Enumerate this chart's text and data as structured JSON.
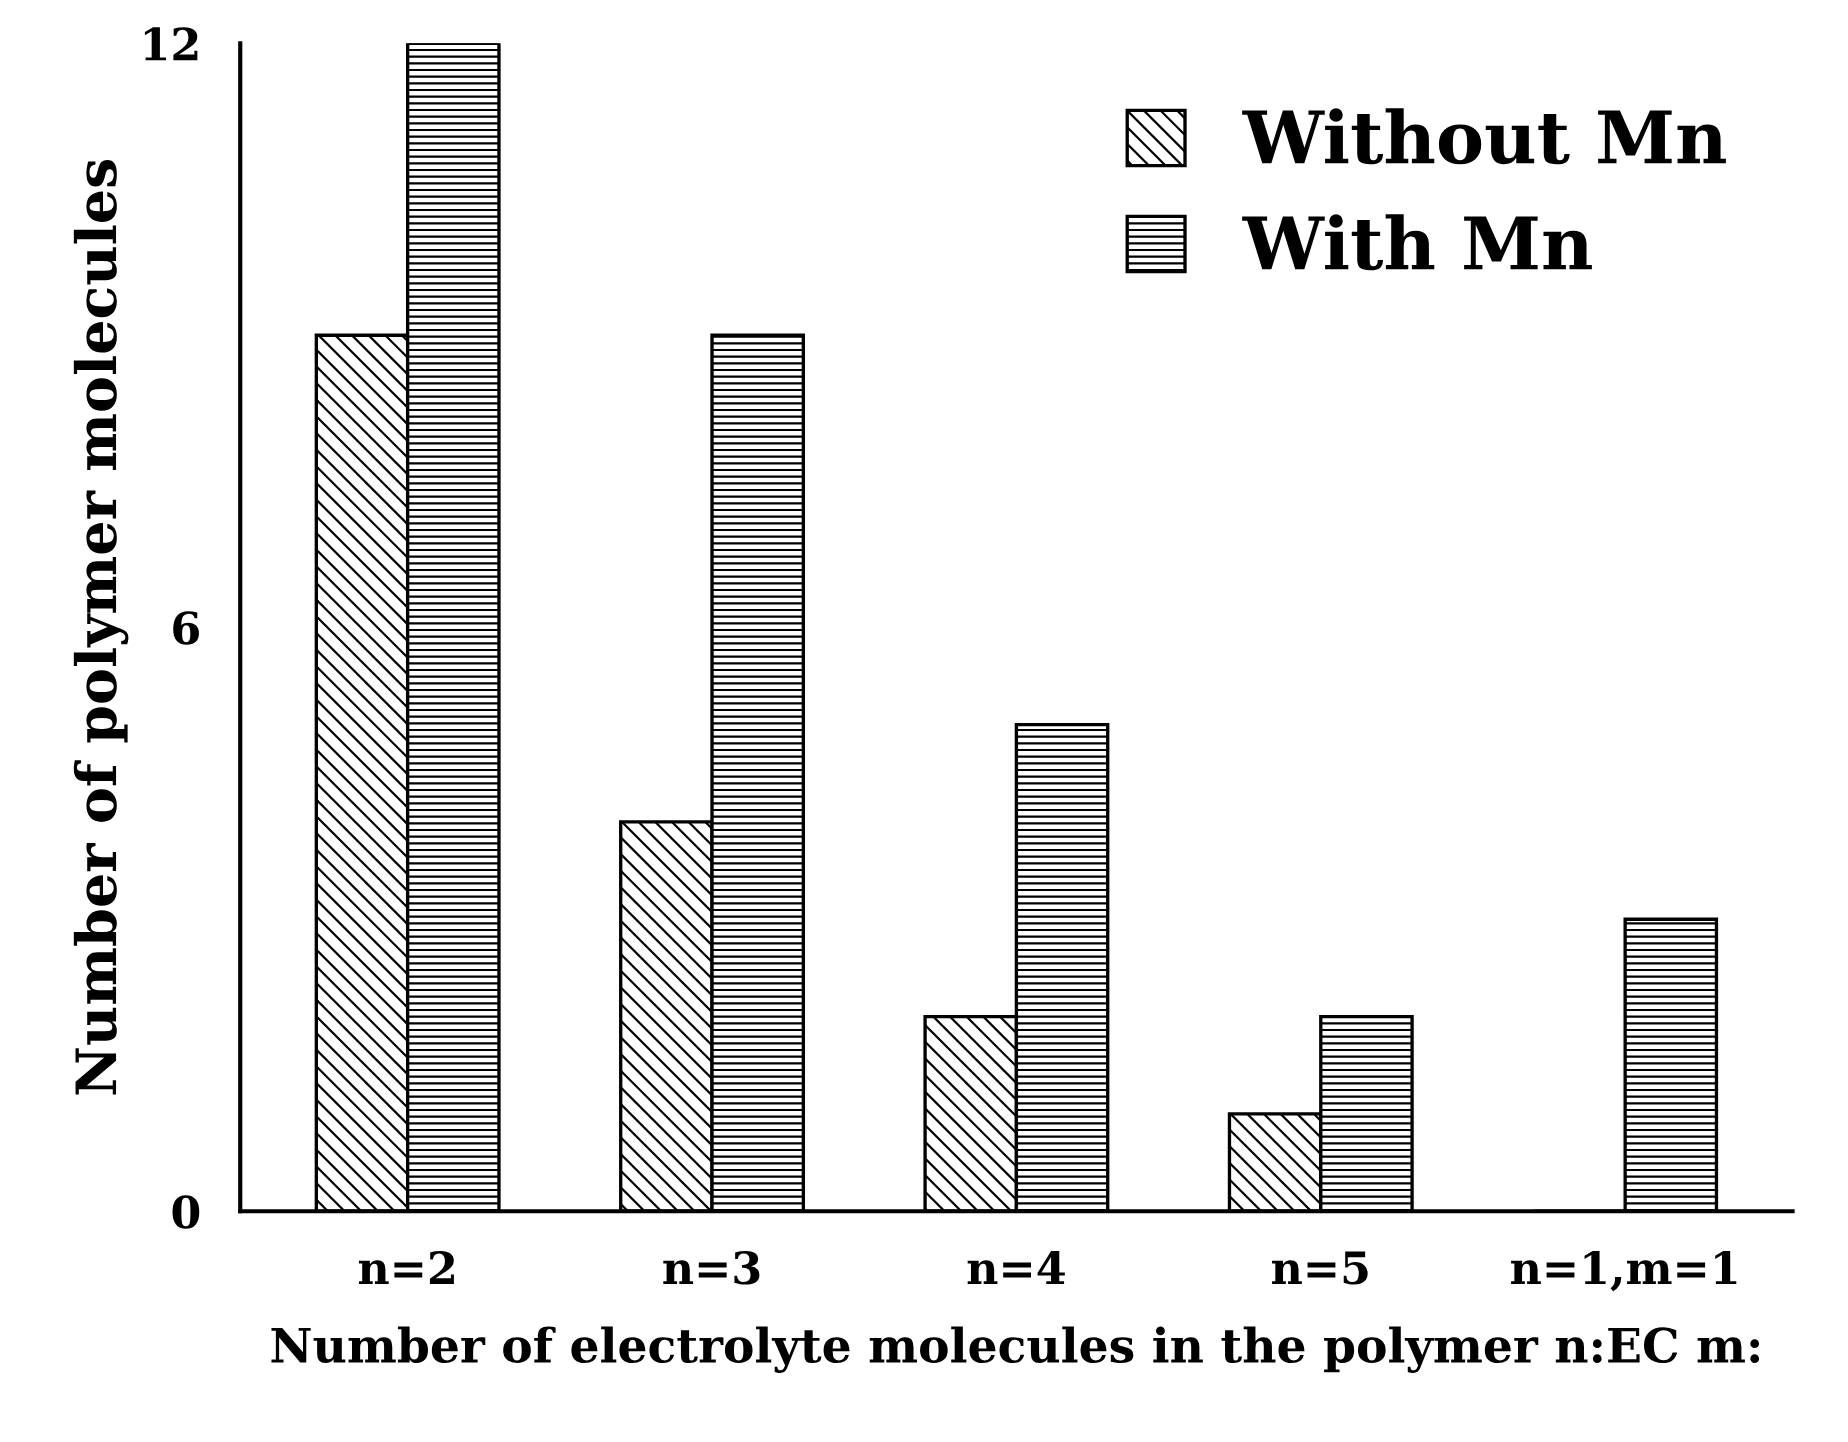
{
  "chart_data": {
    "type": "bar",
    "xlabel": "Number of electrolyte molecules in the polymer n:EC m:",
    "ylabel": "Number of polymer molecules",
    "categories": [
      "n=2",
      "n=3",
      "n=4",
      "n=5",
      "n=1,m=1"
    ],
    "series": [
      {
        "name": "Without Mn",
        "color": "#000000",
        "values": [
          9,
          4,
          2,
          1,
          0
        ]
      },
      {
        "name": "With Mn",
        "color": "#000000",
        "values": [
          12,
          9,
          5,
          2,
          3
        ]
      }
    ],
    "ylim": [
      0,
      12
    ],
    "yticks": [
      0,
      6,
      12
    ],
    "grid": false,
    "legend": "top right"
  }
}
